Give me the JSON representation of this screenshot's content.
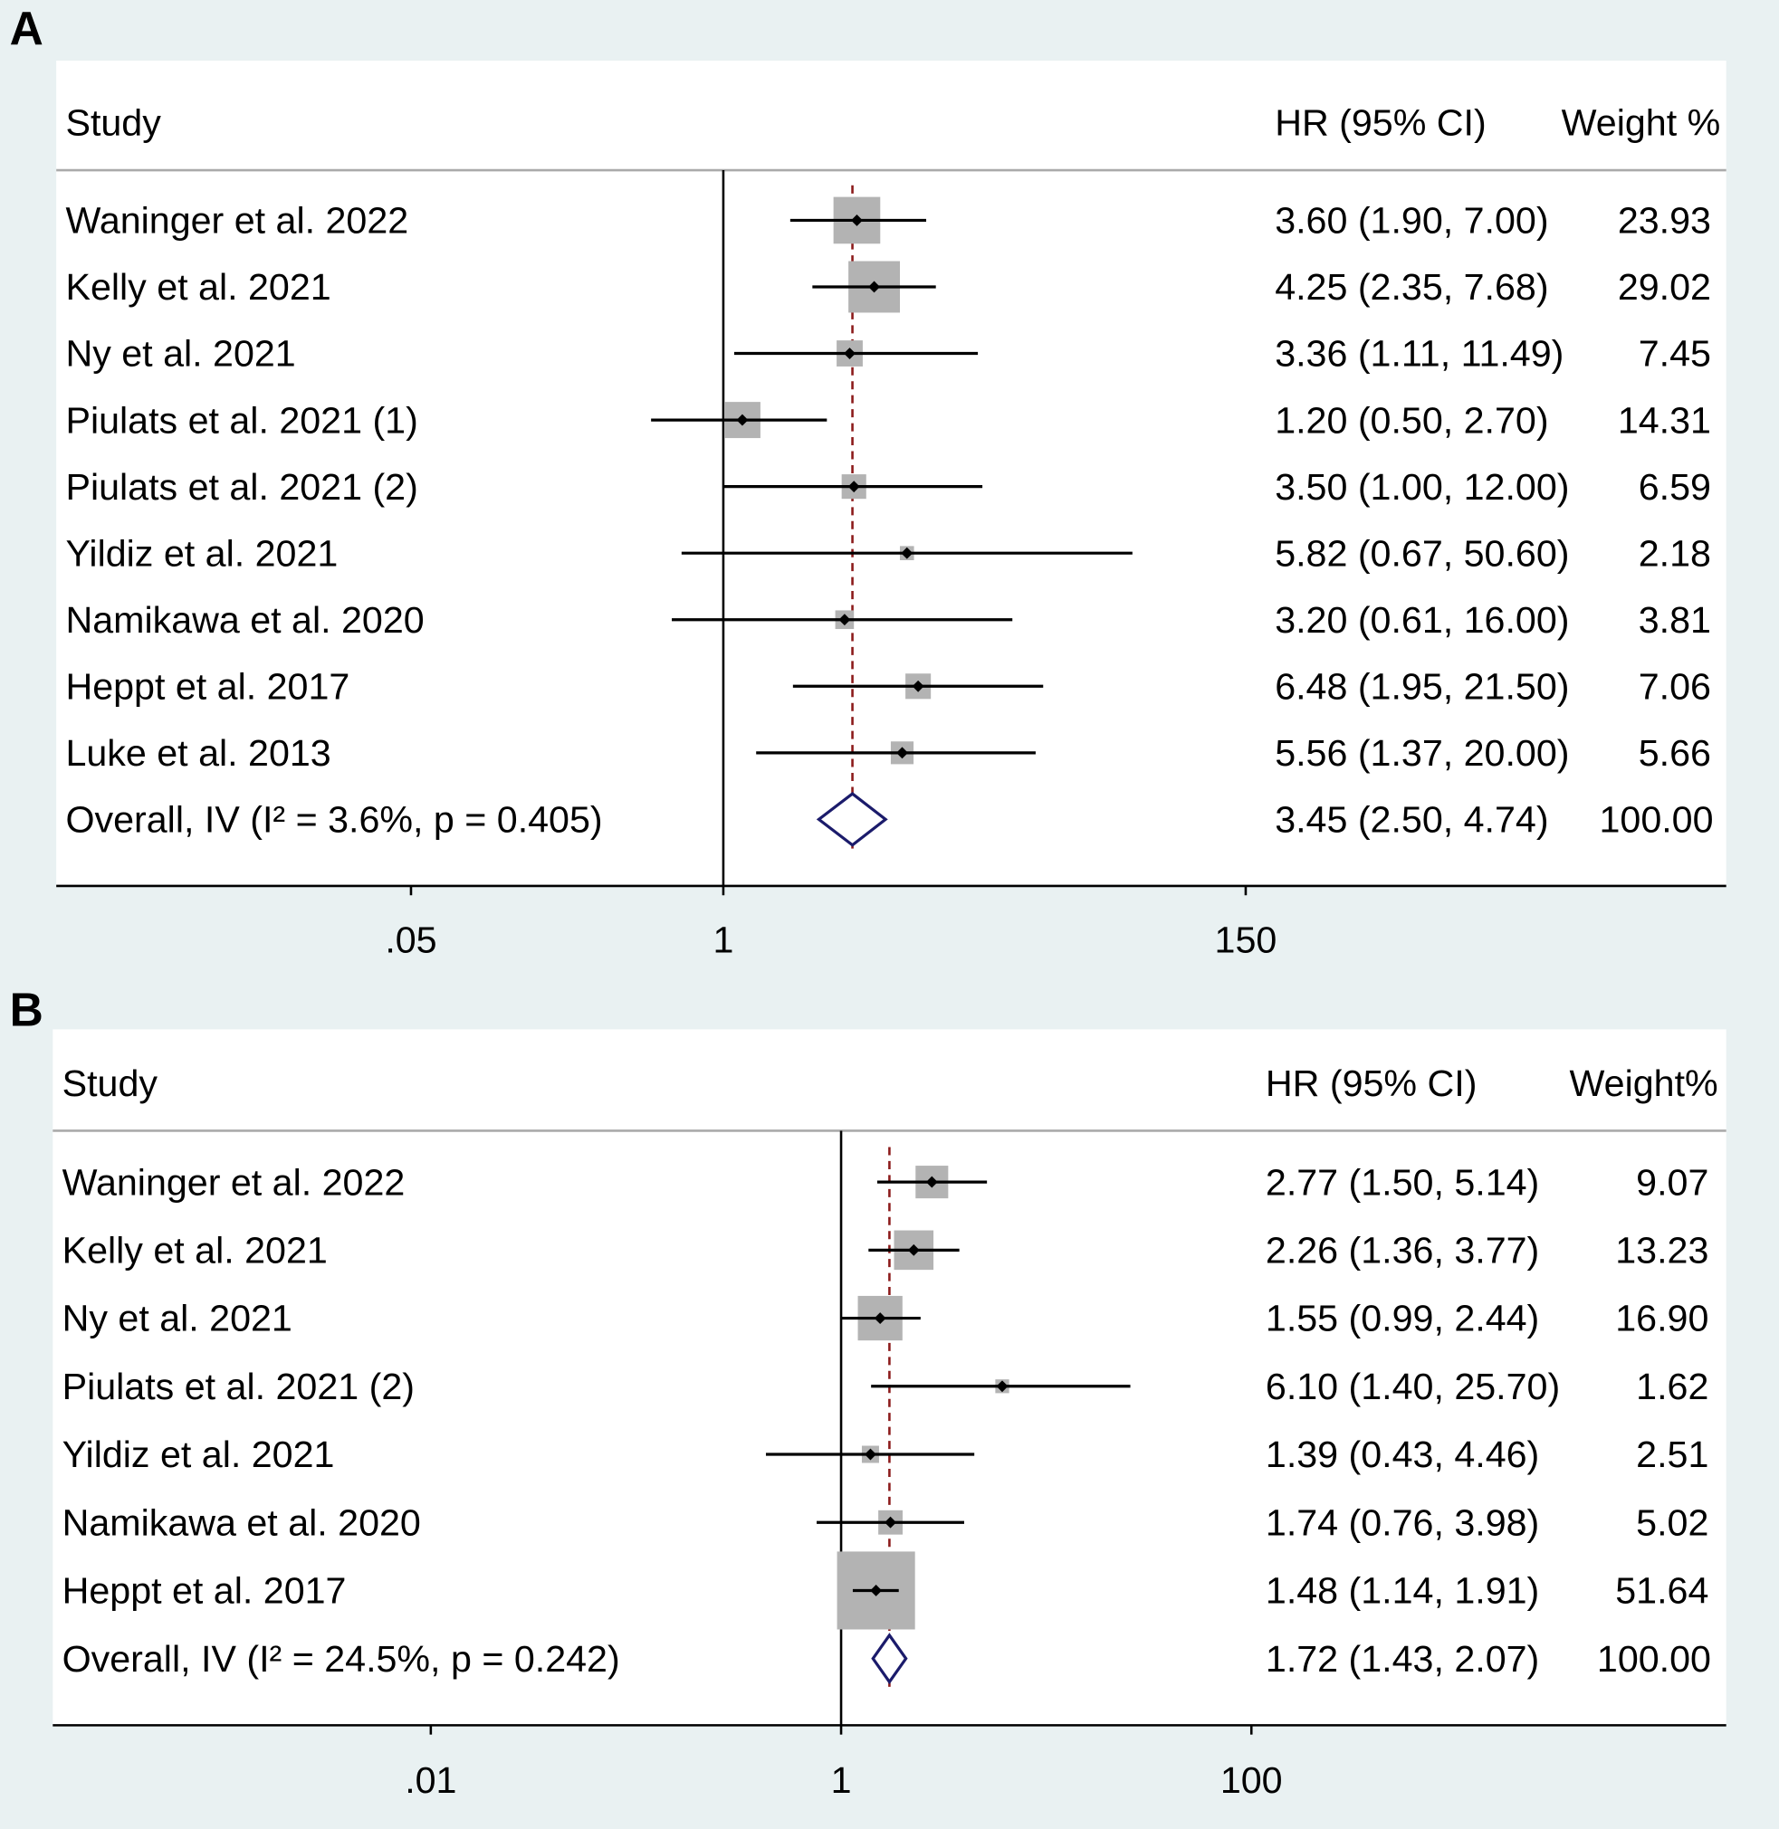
{
  "colors": {
    "background": "#e9f1f2",
    "panel": "#ffffff",
    "box": "#b3b3b3",
    "diamond": "#1b1b6b",
    "overall_line": "#8b1a1a",
    "ci_line": "#000000"
  },
  "chart_data": [
    {
      "type": "forest",
      "panel_label": "A",
      "scale": "log",
      "header": {
        "study": "Study",
        "estimate": "HR (95% CI)",
        "weight": "Weight %"
      },
      "xticks": [
        0.05,
        1,
        150
      ],
      "xtick_labels": [
        ".05",
        "1",
        "150"
      ],
      "null_line": 1,
      "studies": [
        {
          "name": "Waninger et al. 2022",
          "hr": 3.6,
          "lo": 1.9,
          "hi": 7.0,
          "text": "3.60 (1.90, 7.00)",
          "weight": "23.93"
        },
        {
          "name": "Kelly et al. 2021",
          "hr": 4.25,
          "lo": 2.35,
          "hi": 7.68,
          "text": "4.25 (2.35, 7.68)",
          "weight": "29.02"
        },
        {
          "name": "Ny et al. 2021",
          "hr": 3.36,
          "lo": 1.11,
          "hi": 11.49,
          "text": "3.36 (1.11, 11.49)",
          "weight": "7.45"
        },
        {
          "name": "Piulats et al. 2021 (1)",
          "hr": 1.2,
          "lo": 0.5,
          "hi": 2.7,
          "text": "1.20 (0.50, 2.70)",
          "weight": "14.31"
        },
        {
          "name": "Piulats et al. 2021 (2)",
          "hr": 3.5,
          "lo": 1.0,
          "hi": 12.0,
          "text": "3.50 (1.00, 12.00)",
          "weight": "6.59"
        },
        {
          "name": "Yildiz et al. 2021",
          "hr": 5.82,
          "lo": 0.67,
          "hi": 50.6,
          "text": "5.82 (0.67, 50.60)",
          "weight": "2.18"
        },
        {
          "name": "Namikawa et al. 2020",
          "hr": 3.2,
          "lo": 0.61,
          "hi": 16.0,
          "text": "3.20 (0.61, 16.00)",
          "weight": "3.81"
        },
        {
          "name": "Heppt et al. 2017",
          "hr": 6.48,
          "lo": 1.95,
          "hi": 21.5,
          "text": "6.48 (1.95, 21.50)",
          "weight": "7.06"
        },
        {
          "name": "Luke et al. 2013",
          "hr": 5.56,
          "lo": 1.37,
          "hi": 20.0,
          "text": "5.56 (1.37, 20.00)",
          "weight": "5.66"
        }
      ],
      "overall": {
        "name": "Overall, IV (I² = 3.6%, p = 0.405)",
        "hr": 3.45,
        "lo": 2.5,
        "hi": 4.74,
        "text": "3.45 (2.50, 4.74)",
        "weight": "100.00"
      }
    },
    {
      "type": "forest",
      "panel_label": "B",
      "scale": "log",
      "header": {
        "study": "Study",
        "estimate": "HR (95% CI)",
        "weight": "Weight%"
      },
      "xticks": [
        0.01,
        1,
        100
      ],
      "xtick_labels": [
        ".01",
        "1",
        "100"
      ],
      "null_line": 1,
      "studies": [
        {
          "name": "Waninger et al. 2022",
          "hr": 2.77,
          "lo": 1.5,
          "hi": 5.14,
          "text": "2.77 (1.50, 5.14)",
          "weight": "9.07"
        },
        {
          "name": "Kelly et al. 2021",
          "hr": 2.26,
          "lo": 1.36,
          "hi": 3.77,
          "text": "2.26 (1.36, 3.77)",
          "weight": "13.23"
        },
        {
          "name": "Ny et al. 2021",
          "hr": 1.55,
          "lo": 0.99,
          "hi": 2.44,
          "text": "1.55 (0.99, 2.44)",
          "weight": "16.90"
        },
        {
          "name": "Piulats et al. 2021 (2)",
          "hr": 6.1,
          "lo": 1.4,
          "hi": 25.7,
          "text": "6.10 (1.40, 25.70)",
          "weight": "1.62"
        },
        {
          "name": "Yildiz et al. 2021",
          "hr": 1.39,
          "lo": 0.43,
          "hi": 4.46,
          "text": "1.39 (0.43, 4.46)",
          "weight": "2.51"
        },
        {
          "name": "Namikawa et al. 2020",
          "hr": 1.74,
          "lo": 0.76,
          "hi": 3.98,
          "text": "1.74 (0.76, 3.98)",
          "weight": "5.02"
        },
        {
          "name": "Heppt et al. 2017",
          "hr": 1.48,
          "lo": 1.14,
          "hi": 1.91,
          "text": "1.48 (1.14, 1.91)",
          "weight": "51.64"
        }
      ],
      "overall": {
        "name": "Overall, IV (I² = 24.5%, p = 0.242)",
        "hr": 1.72,
        "lo": 1.43,
        "hi": 2.07,
        "text": "1.72 (1.43, 2.07)",
        "weight": "100.00"
      }
    }
  ]
}
